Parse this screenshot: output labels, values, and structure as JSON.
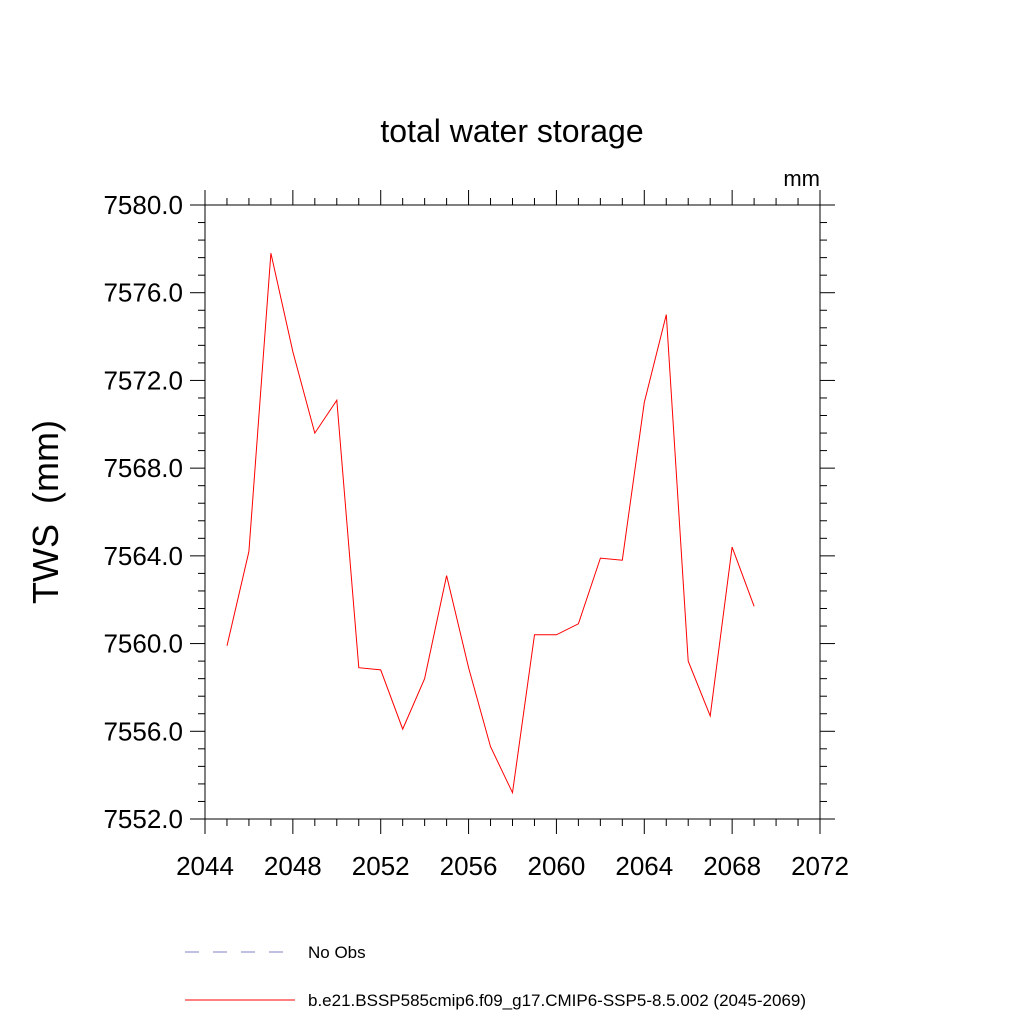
{
  "chart_data": {
    "type": "line",
    "title": "total water storage",
    "units_label": "mm",
    "ylabel": "TWS  (mm)",
    "xlabel": "",
    "xlim": [
      2044,
      2072
    ],
    "ylim": [
      7552,
      7580
    ],
    "x_ticks": [
      2044,
      2048,
      2052,
      2056,
      2060,
      2064,
      2068,
      2072
    ],
    "x_tick_labels": [
      "2044",
      "2048",
      "2052",
      "2056",
      "2060",
      "2064",
      "2068",
      "2072"
    ],
    "y_ticks": [
      7552,
      7556,
      7560,
      7564,
      7568,
      7572,
      7576,
      7580
    ],
    "y_tick_labels": [
      "7552.0",
      "7556.0",
      "7560.0",
      "7564.0",
      "7568.0",
      "7572.0",
      "7576.0",
      "7580.0"
    ],
    "series": [
      {
        "name": "b.e21.BSSP585cmip6.f09_g17.CMIP6-SSP5-8.5.002 (2045-2069)",
        "color": "#ff0000",
        "style": "solid",
        "x": [
          2045,
          2046,
          2047,
          2048,
          2049,
          2050,
          2051,
          2052,
          2053,
          2054,
          2055,
          2056,
          2057,
          2058,
          2059,
          2060,
          2061,
          2062,
          2063,
          2064,
          2065,
          2066,
          2067,
          2068,
          2069
        ],
        "y": [
          7559.9,
          7564.2,
          7577.8,
          7573.3,
          7569.6,
          7571.1,
          7558.9,
          7558.8,
          7556.1,
          7558.4,
          7563.1,
          7558.9,
          7555.3,
          7553.2,
          7560.4,
          7560.4,
          7560.9,
          7563.9,
          7563.8,
          7571.0,
          7575.0,
          7559.2,
          7556.7,
          7564.4,
          7561.7
        ]
      }
    ],
    "legend": {
      "placement": "bottom",
      "entries": [
        {
          "label": "No Obs",
          "color": "#8080c0",
          "style": "dashed"
        },
        {
          "label": "b.e21.BSSP585cmip6.f09_g17.CMIP6-SSP5-8.5.002 (2045-2069)",
          "color": "#ff0000",
          "style": "solid"
        }
      ]
    }
  }
}
